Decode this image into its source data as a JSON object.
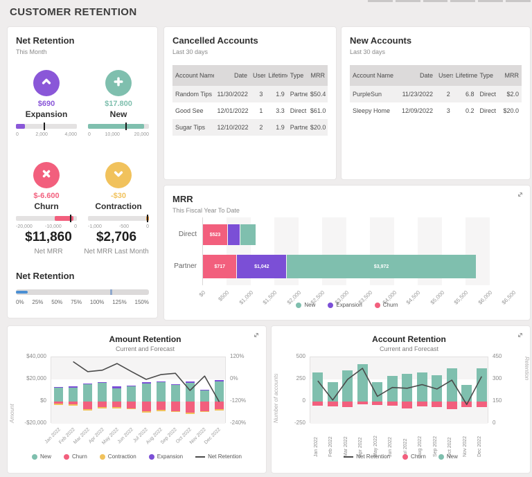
{
  "page": {
    "title": "CUSTOMER RETENTION"
  },
  "panels": {
    "net_retention": {
      "title": "Net Retention",
      "subtitle": "This Month",
      "metrics": [
        {
          "name": "Expansion",
          "value": "$690",
          "color": "#8a57d8",
          "icon": "chevron-up-icon",
          "gauge": {
            "fill_start": 0,
            "fill_end": 15,
            "marker": 45,
            "fill_color": "#8a57d8",
            "ticks": [
              "0",
              "2,000",
              "4,000"
            ]
          }
        },
        {
          "name": "New",
          "value": "$17.800",
          "color": "#7fbfae",
          "icon": "plus-icon",
          "gauge": {
            "fill_start": 0,
            "fill_end": 92,
            "marker": 61,
            "fill_color": "#7fbfae",
            "ticks": [
              "0",
              "10,000",
              "20,000"
            ]
          }
        },
        {
          "name": "Churn",
          "value": "$-6.600",
          "color": "#f25f7d",
          "icon": "x-mark-icon",
          "gauge": {
            "fill_start": 64,
            "fill_end": 94,
            "marker": 89,
            "fill_color": "#f25f7d",
            "ticks": [
              "-20,000",
              "-10,000",
              "0"
            ]
          }
        },
        {
          "name": "Contraction",
          "value": "-$30",
          "color": "#f1c25c",
          "icon": "chevron-down-icon",
          "gauge": {
            "fill_start": 96,
            "fill_end": 100,
            "marker": 97,
            "fill_color": "#e8983f",
            "ticks": [
              "-1,000",
              "-500",
              "0"
            ]
          }
        }
      ],
      "summary": [
        {
          "value": "$11,860",
          "label": "Net MRR"
        },
        {
          "value": "$2,706",
          "label": "Net MRR Last Month"
        }
      ],
      "slider": {
        "title": "Net Retention",
        "fill_end": 9,
        "marker": 71,
        "fill_color": "#4a8fd3",
        "marker_color": "#8fa8cc",
        "ticks": [
          "0%",
          "25%",
          "50%",
          "75%",
          "100%",
          "125%",
          "150%"
        ]
      }
    },
    "cancelled_accounts": {
      "title": "Cancelled Accounts",
      "subtitle": "Last 30 days",
      "columns": [
        "Account Name",
        "Date",
        "Users",
        "Lifetime",
        "Type",
        "MRR"
      ],
      "align": [
        "left",
        "right",
        "right",
        "right",
        "left",
        "right"
      ],
      "rows": [
        [
          "Random Tips",
          "11/30/2022",
          "3",
          "1.9",
          "Partner",
          "$50.4"
        ],
        [
          "Good See",
          "12/01/2022",
          "1",
          "3.3",
          "Direct",
          "$61.0"
        ],
        [
          "Sugar Tips",
          "12/10/2022",
          "2",
          "1.9",
          "Partner",
          "$20.0"
        ]
      ]
    },
    "new_accounts": {
      "title": "New Accounts",
      "subtitle": "Last 30 days",
      "columns": [
        "Account Name",
        "Date",
        "Users",
        "Lifetime",
        "Type",
        "MRR"
      ],
      "align": [
        "left",
        "right",
        "right",
        "right",
        "left",
        "right"
      ],
      "rows": [
        [
          "PurpleSun",
          "11/23/2022",
          "2",
          "6.8",
          "Direct",
          "$2.0"
        ],
        [
          "Sleepy Home",
          "12/09/2022",
          "3",
          "0.2",
          "Direct",
          "$20.0"
        ]
      ]
    }
  },
  "chart_data": [
    {
      "id": "mrr",
      "type": "bar",
      "orientation": "horizontal",
      "stacked": true,
      "title": "MRR",
      "subtitle": "This Fiscal Year To Date",
      "categories": [
        "Direct",
        "Partner"
      ],
      "series": [
        {
          "name": "Churn",
          "color": "#f25f7d",
          "values": [
            523,
            717
          ],
          "labels": [
            "$523",
            "$717"
          ]
        },
        {
          "name": "Expansion",
          "color": "#7b4fd6",
          "values": [
            254,
            1042
          ],
          "labels": [
            "$254",
            "$1,042"
          ]
        },
        {
          "name": "New",
          "color": "#7fbfae",
          "values": [
            334,
            3972
          ],
          "labels": [
            "$334",
            "$3,972"
          ]
        }
      ],
      "xlim": [
        0,
        6500
      ],
      "x_ticks": [
        "$0",
        "$500",
        "$1,000",
        "$1,500",
        "$2,000",
        "$2,500",
        "$3,000",
        "$3,500",
        "$4,000",
        "$4,500",
        "$5,000",
        "$5,500",
        "$6,000",
        "$6,500"
      ],
      "legend": [
        {
          "label": "New",
          "color": "#7fbfae"
        },
        {
          "label": "Expansion",
          "color": "#7b4fd6"
        },
        {
          "label": "Churn",
          "color": "#f25f7d"
        }
      ]
    },
    {
      "id": "amount_retention",
      "type": "bar+line",
      "stacked": true,
      "title": "Amount Retention",
      "subtitle": "Current and Forecast",
      "categories": [
        "Jan 2022",
        "Feb 2022",
        "Mar 2022",
        "Apr 2022",
        "May 2022",
        "Jun 2022",
        "Jul 2022",
        "Aug 2022",
        "Sep 2022",
        "Oct 2022",
        "Nov 2022",
        "Dec 2022"
      ],
      "ylabel_left": "Amount",
      "ylim_left": [
        -20000,
        40000
      ],
      "y_ticks_left": [
        {
          "v": 40000,
          "t": "$40,000"
        },
        {
          "v": 20000,
          "t": "$20,000"
        },
        {
          "v": 0,
          "t": "$0"
        },
        {
          "v": -20000,
          "t": "-$20,000"
        }
      ],
      "ylim_right": [
        -240,
        120
      ],
      "y_ticks_right": [
        {
          "v": 120,
          "t": "120%"
        },
        {
          "v": 0,
          "t": "0%"
        },
        {
          "v": -120,
          "t": "-120%"
        },
        {
          "v": -240,
          "t": "-240%"
        }
      ],
      "series": [
        {
          "name": "New",
          "color": "#7fbfae",
          "values": [
            12500,
            12500,
            15500,
            17000,
            12000,
            13500,
            16500,
            17500,
            15000,
            17800,
            10000,
            18500
          ]
        },
        {
          "name": "Expansion",
          "color": "#7b4fd6",
          "values": [
            800,
            1000,
            800,
            800,
            1800,
            900,
            700,
            800,
            700,
            300,
            700,
            700
          ]
        },
        {
          "name": "Churn",
          "color": "#f25f7d",
          "values": [
            -2000,
            -2500,
            -7000,
            -5000,
            -5000,
            -6200,
            -9000,
            -7500,
            -8500,
            -10000,
            -8500,
            -7000
          ]
        },
        {
          "name": "Contraction",
          "color": "#f1c25c",
          "values": [
            -150,
            -300,
            -200,
            -150,
            -150,
            -300,
            -300,
            -300,
            -300,
            -400,
            -300,
            -150
          ]
        }
      ],
      "line": {
        "name": "Net Retention",
        "color": "#4a4a4a",
        "axis": "right",
        "values": [
          null,
          96,
          42,
          50,
          86,
          42,
          0,
          26,
          33,
          -60,
          18,
          -122
        ]
      },
      "legend": [
        {
          "label": "New",
          "color": "#7fbfae"
        },
        {
          "label": "Churn",
          "color": "#f25f7d"
        },
        {
          "label": "Contraction",
          "color": "#f1c25c"
        },
        {
          "label": "Expansion",
          "color": "#7b4fd6"
        },
        {
          "label": "Net Retention",
          "type": "line",
          "color": "#4a4a4a"
        }
      ]
    },
    {
      "id": "account_retention",
      "type": "bar+line",
      "stacked": true,
      "title": "Account Retention",
      "subtitle": "Current and Forecast",
      "categories": [
        "Jan 2022",
        "Feb 2022",
        "Mar 2022",
        "Apr 2022",
        "May 2022",
        "Jun 2022",
        "Jul 2022",
        "Aug 2022",
        "Sep 2022",
        "Oct 2022",
        "Nov 2022",
        "Dec 2022"
      ],
      "ylabel_left": "Number of accounts",
      "ylim_left": [
        -250,
        500
      ],
      "y_ticks_left": [
        {
          "v": 500,
          "t": "500"
        },
        {
          "v": 250,
          "t": "250"
        },
        {
          "v": 0,
          "t": "0"
        },
        {
          "v": -250,
          "t": "-250"
        }
      ],
      "ylabel_right": "Retention",
      "ylim_right": [
        0,
        450
      ],
      "y_ticks_right": [
        {
          "v": 450,
          "t": "450"
        },
        {
          "v": 300,
          "t": "300"
        },
        {
          "v": 150,
          "t": "150"
        },
        {
          "v": 0,
          "t": "0"
        }
      ],
      "series": [
        {
          "name": "New",
          "color": "#7fbfae",
          "values": [
            330,
            215,
            350,
            420,
            220,
            290,
            310,
            325,
            300,
            375,
            190,
            375
          ]
        },
        {
          "name": "Churn",
          "color": "#f25f7d",
          "values": [
            -50,
            -55,
            -60,
            -30,
            -40,
            -45,
            -75,
            -55,
            -60,
            -85,
            -60,
            -65
          ]
        }
      ],
      "line": {
        "name": "Net Retention",
        "color": "#4a4a4a",
        "axis": "right",
        "values": [
          290,
          160,
          300,
          375,
          185,
          245,
          240,
          265,
          235,
          295,
          130,
          320
        ]
      },
      "legend": [
        {
          "label": "Net Retention",
          "type": "line",
          "color": "#4a4a4a"
        },
        {
          "label": "Churn",
          "color": "#f25f7d"
        },
        {
          "label": "New",
          "color": "#7fbfae"
        }
      ]
    }
  ]
}
